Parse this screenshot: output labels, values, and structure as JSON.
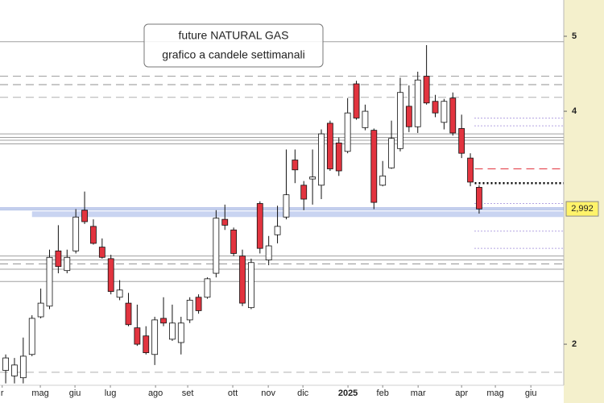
{
  "chart_data": {
    "type": "candlestick",
    "title": "future NATURAL GAS",
    "subtitle": "grafico a candele settimanali",
    "log_scale": true,
    "ylim": [
      1.77,
      5.57
    ],
    "yticks": [
      5,
      4,
      2
    ],
    "xlim": [
      -0.65,
      63.65
    ],
    "xticks": [
      {
        "value": -0.4,
        "label": "r"
      },
      {
        "value": 3.95,
        "label": "mag"
      },
      {
        "value": 7.9,
        "label": "giu"
      },
      {
        "value": 11.94,
        "label": "lug"
      },
      {
        "value": 17.09,
        "label": "ago"
      },
      {
        "value": 20.76,
        "label": "set"
      },
      {
        "value": 25.9,
        "label": "ott"
      },
      {
        "value": 29.95,
        "label": "nov"
      },
      {
        "value": 33.9,
        "label": "dic"
      },
      {
        "value": 39.04,
        "label": "2025"
      },
      {
        "value": 43.0,
        "label": "feb"
      },
      {
        "value": 47.04,
        "label": "mar"
      },
      {
        "value": 52.0,
        "label": "apr"
      },
      {
        "value": 55.85,
        "label": "mag"
      },
      {
        "value": 59.9,
        "label": "giu"
      }
    ],
    "x": [
      0,
      1,
      2,
      3,
      4,
      5,
      6,
      7,
      8,
      9,
      10,
      11,
      12,
      13,
      14,
      15,
      16,
      17,
      18,
      19,
      20,
      21,
      22,
      23,
      24,
      25,
      26,
      27,
      28,
      29,
      30,
      31,
      32,
      33,
      34,
      35,
      36,
      37,
      38,
      39,
      40,
      41,
      42,
      43,
      44,
      45,
      46,
      47,
      48,
      49,
      50,
      51,
      52,
      53,
      54
    ],
    "open": [
      1.85,
      1.82,
      1.81,
      1.94,
      2.17,
      2.24,
      2.64,
      2.49,
      2.64,
      2.98,
      2.84,
      2.67,
      2.58,
      2.3,
      2.26,
      2.1,
      2.05,
      1.94,
      2.16,
      2.03,
      2.01,
      2.15,
      2.3,
      2.3,
      2.47,
      2.9,
      2.81,
      2.6,
      2.23,
      3.04,
      2.57,
      2.77,
      2.92,
      3.46,
      3.21,
      3.27,
      3.21,
      3.86,
      3.64,
      3.55,
      4.34,
      3.81,
      3.78,
      3.21,
      3.38,
      3.58,
      4.06,
      3.82,
      4.44,
      4.12,
      3.87,
      4.16,
      3.8,
      3.48,
      3.19
    ],
    "high": [
      1.94,
      1.92,
      2.04,
      2.18,
      2.36,
      2.65,
      2.85,
      2.65,
      2.99,
      3.15,
      2.9,
      2.74,
      2.61,
      2.42,
      2.33,
      2.25,
      2.11,
      2.17,
      2.3,
      2.25,
      2.17,
      2.3,
      2.32,
      2.44,
      2.98,
      3.03,
      2.83,
      2.65,
      2.58,
      3.06,
      2.76,
      3.02,
      3.57,
      3.57,
      3.25,
      3.57,
      3.79,
      3.89,
      3.7,
      4.16,
      4.38,
      4.08,
      3.8,
      3.45,
      3.89,
      4.42,
      4.32,
      4.5,
      4.87,
      4.2,
      4.15,
      4.23,
      3.96,
      3.53,
      3.21
    ],
    "low": [
      1.78,
      1.78,
      1.78,
      1.93,
      2.16,
      2.22,
      2.47,
      2.47,
      2.62,
      2.86,
      2.69,
      2.58,
      2.32,
      2.28,
      2.11,
      1.99,
      1.94,
      1.88,
      2.11,
      2.02,
      1.94,
      2.13,
      2.19,
      2.29,
      2.44,
      2.81,
      2.6,
      2.24,
      2.22,
      2.62,
      2.53,
      2.7,
      2.9,
      3.23,
      2.98,
      3.03,
      3.08,
      3.35,
      3.3,
      3.53,
      3.9,
      3.78,
      2.99,
      3.2,
      3.37,
      3.55,
      3.76,
      3.75,
      4.08,
      3.93,
      3.79,
      3.72,
      3.48,
      3.2,
      2.95
    ],
    "close": [
      1.92,
      1.88,
      1.93,
      2.16,
      2.26,
      2.59,
      2.52,
      2.59,
      2.92,
      2.88,
      2.7,
      2.59,
      2.34,
      2.35,
      2.12,
      2.0,
      1.95,
      2.15,
      2.13,
      2.13,
      2.13,
      2.28,
      2.21,
      2.43,
      2.91,
      2.85,
      2.62,
      2.26,
      2.55,
      2.66,
      2.68,
      2.84,
      3.12,
      3.36,
      3.08,
      3.29,
      3.74,
      3.37,
      3.35,
      3.98,
      3.92,
      4.0,
      3.05,
      3.3,
      3.69,
      4.23,
      3.82,
      4.39,
      4.1,
      3.98,
      4.12,
      3.75,
      3.53,
      3.24,
      2.992
    ],
    "up_color": "#ffffff",
    "down_color": "#e2343f",
    "last_price": {
      "value": 2.992,
      "label": "2,992"
    },
    "levels": [
      {
        "value": 4.92,
        "style": "solid",
        "color": "#a0a0a0"
      },
      {
        "value": 4.44,
        "style": "dashed",
        "color": "#a0a0a0"
      },
      {
        "value": 4.33,
        "style": "dashed",
        "color": "#909090"
      },
      {
        "value": 4.17,
        "style": "dashed",
        "color": "#b0b0b0"
      },
      {
        "value": 3.74,
        "style": "solid",
        "color": "#a0a0a0"
      },
      {
        "value": 3.7,
        "style": "solid",
        "color": "#a0a0a0"
      },
      {
        "value": 3.67,
        "style": "solid",
        "color": "#a0a0a0"
      },
      {
        "value": 3.63,
        "style": "solid",
        "color": "#a0a0a0"
      },
      {
        "value": 3.0,
        "style": "solid",
        "color": "#7f96d8"
      },
      {
        "value": 2.985,
        "style": "solid",
        "color": "#7f96d8"
      },
      {
        "value": 2.6,
        "style": "solid",
        "color": "#a0a0a0"
      },
      {
        "value": 2.57,
        "style": "solid",
        "color": "#a0a0a0"
      },
      {
        "value": 2.54,
        "style": "dashed",
        "color": "#909090"
      },
      {
        "value": 2.5,
        "style": "solid",
        "color": "#a0a0a0"
      },
      {
        "value": 2.41,
        "style": "solid",
        "color": "#a0a0a0"
      },
      {
        "value": 1.84,
        "style": "dashed",
        "color": "#b0b0b0"
      },
      {
        "value": 3.92,
        "style": "dotted",
        "color": "#6a4bc4",
        "x_start": 53.5
      },
      {
        "value": 3.83,
        "style": "dotted",
        "color": "#6a4bc4",
        "x_start": 53.5
      },
      {
        "value": 3.37,
        "style": "dashed",
        "color": "#e2343f",
        "x_start": 53.5
      },
      {
        "value": 3.23,
        "style": "dotted-bold",
        "color": "#000000",
        "x_start": 53.5
      },
      {
        "value": 3.04,
        "style": "dotted",
        "color": "#6a4bc4",
        "x_start": 53.5
      },
      {
        "value": 2.8,
        "style": "dotted",
        "color": "#6a4bc4",
        "x_start": 53.5
      },
      {
        "value": 2.66,
        "style": "dotted",
        "color": "#6a4bc4",
        "x_start": 53.5
      }
    ],
    "band": {
      "low": 2.92,
      "high": 2.97,
      "x_start": 3.0,
      "color": "#c9d4f1"
    }
  }
}
